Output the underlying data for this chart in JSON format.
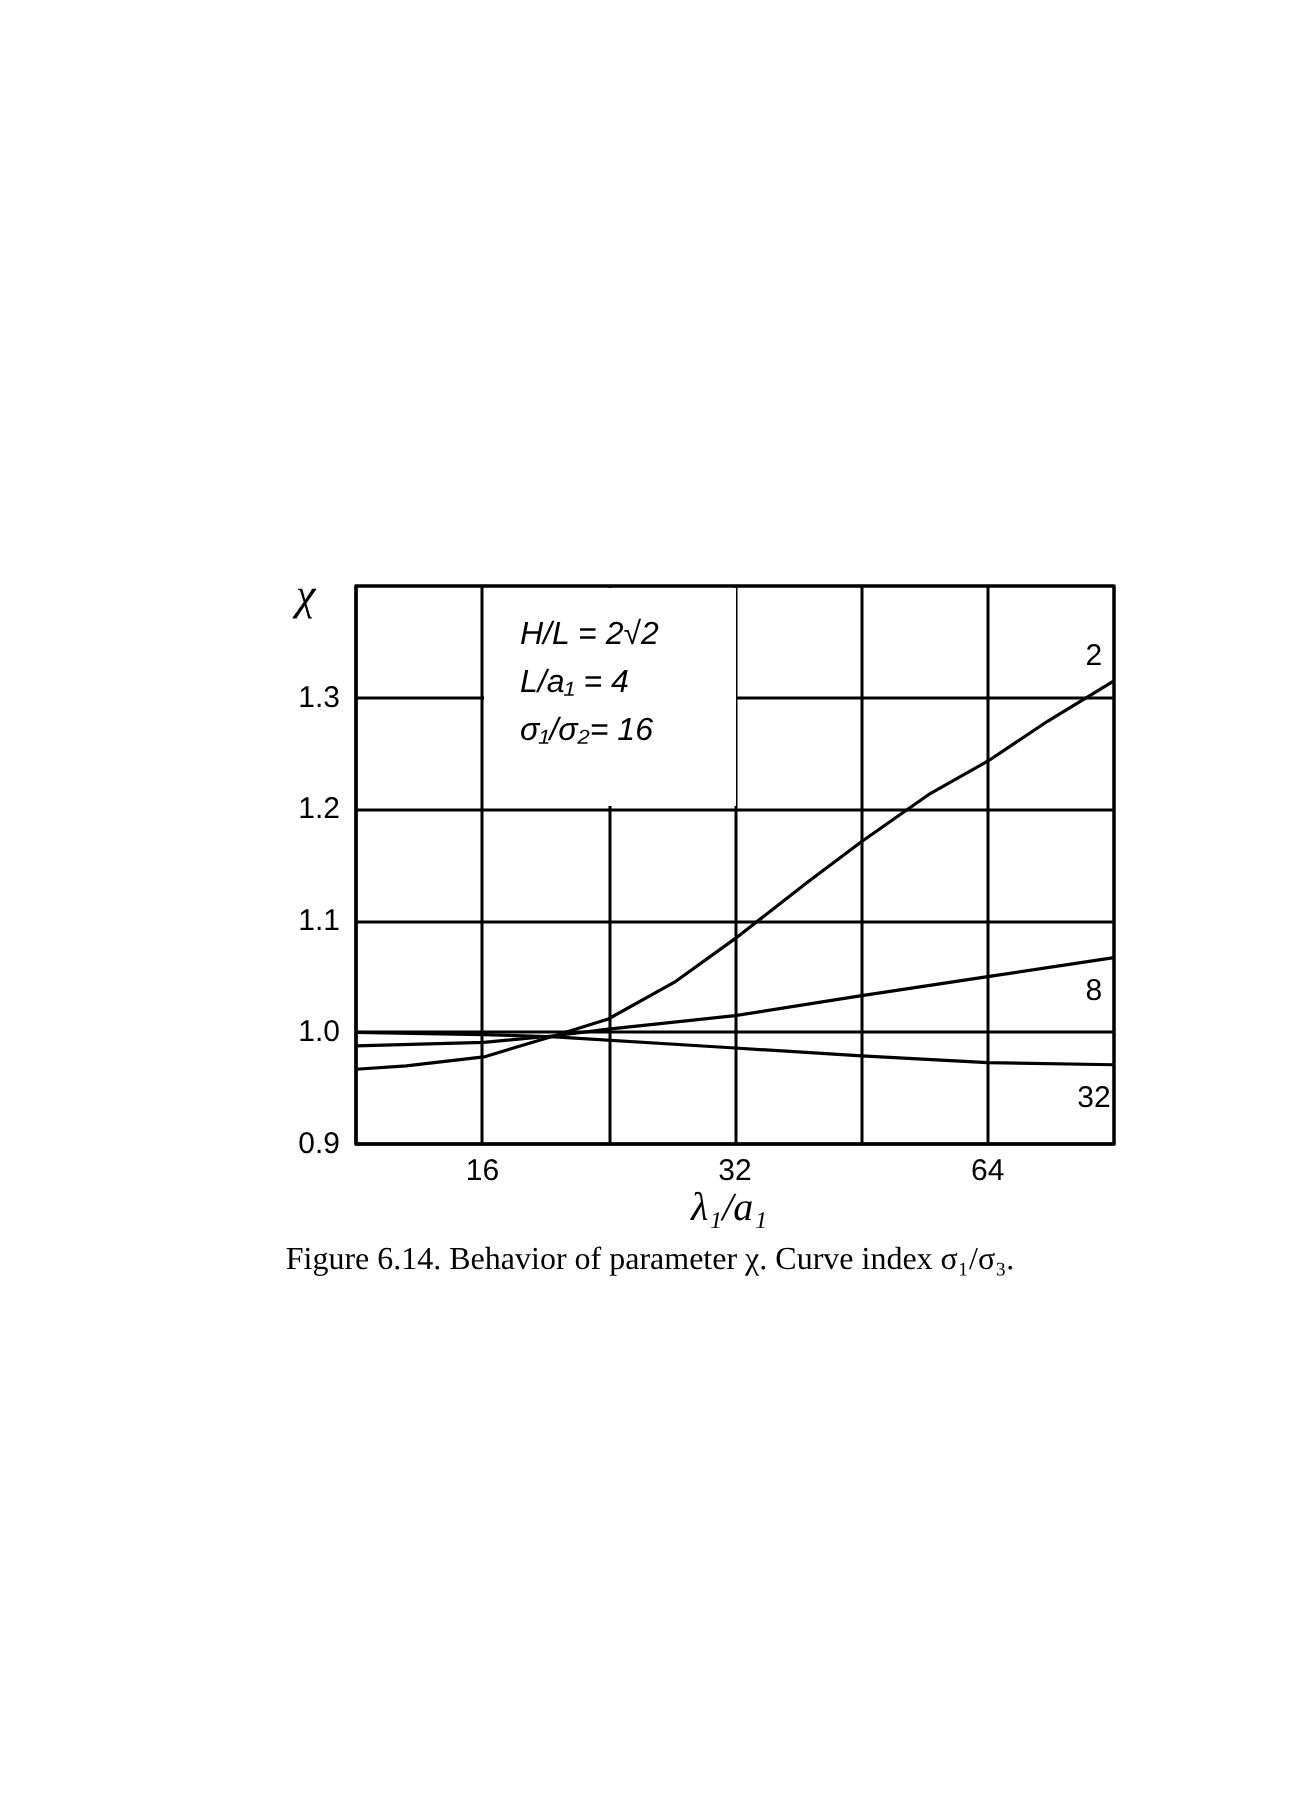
{
  "chart_data": {
    "type": "line",
    "xlabel": "λ₁/a₁",
    "ylabel": "χ",
    "annotations": [
      "H/L = 2√2",
      "L/a₁ = 4",
      "σ₁/σ₂= 16",
      "Figure 6.14. Behavior of parameter χ. Curve index σ₁/σ₃."
    ],
    "log": "x",
    "grid": true,
    "legend": false,
    "marker": "none",
    "line_style": "solid",
    "xlim": [
      11.31,
      90.51
    ],
    "xticks": [
      {
        "value": 11.31,
        "label": null
      },
      16,
      {
        "value": 22.63,
        "label": null
      },
      32,
      {
        "value": 45.25,
        "label": null
      },
      64,
      {
        "value": 90.51,
        "label": null
      }
    ],
    "ylim": [
      0.9,
      1.4
    ],
    "yticks": [
      {
        "value": 0.9,
        "label": "0.9"
      },
      {
        "value": 1.0,
        "label": "1.0"
      },
      {
        "value": 1.1,
        "label": "1.1"
      },
      {
        "value": 1.2,
        "label": "1.2"
      },
      {
        "value": 1.3,
        "label": "1.3"
      },
      {
        "value": 1.4,
        "label": null
      }
    ],
    "series": [
      {
        "name": "2",
        "color": "#000000",
        "x": [
          11.31,
          12.98,
          16.06,
          19.5,
          22.6,
          27.1,
          32,
          39.1,
          45.3,
          54.4,
          64,
          75.5,
          90.5
        ],
        "values": [
          0.967,
          0.97,
          0.978,
          0.997,
          1.012,
          1.045,
          1.084,
          1.135,
          1.171,
          1.213,
          1.243,
          1.279,
          1.315
        ]
      },
      {
        "name": "8",
        "color": "#000000",
        "x": [
          11.31,
          16.06,
          19.5,
          22.6,
          32,
          45.3,
          64,
          90.5
        ],
        "values": [
          0.988,
          0.991,
          0.997,
          1.003,
          1.015,
          1.033,
          1.05,
          1.067
        ]
      },
      {
        "name": "32",
        "color": "#000000",
        "x": [
          11.31,
          16.06,
          19.5,
          32,
          45.3,
          64,
          90.5
        ],
        "values": [
          1.0,
          0.998,
          0.996,
          0.986,
          0.979,
          0.973,
          0.971
        ]
      }
    ]
  }
}
